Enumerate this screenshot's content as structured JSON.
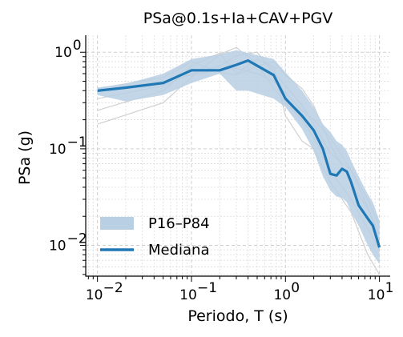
{
  "chart_data": {
    "type": "line",
    "title": "PSa@0.1s+Ia+CAV+PGV",
    "xlabel": "Periodo, T (s)",
    "ylabel": "PSa (g)",
    "xscale": "log",
    "yscale": "log",
    "xlim": [
      0.0075,
      13
    ],
    "ylim": [
      0.0048,
      1.5
    ],
    "grid": true,
    "legend_position": "lower-left",
    "x_ticks": [
      0.01,
      0.1,
      1,
      10
    ],
    "x_tick_labels": [
      "10",
      "10",
      "10",
      "10"
    ],
    "x_tick_exponents": [
      "−2",
      "−1",
      "0",
      "1"
    ],
    "y_ticks": [
      0.01,
      0.1,
      1
    ],
    "y_tick_labels": [
      "10",
      "10",
      "10"
    ],
    "y_tick_exponents": [
      "−2",
      "−1",
      "0"
    ],
    "legend": {
      "band_label": "P16–P84",
      "median_label": "Mediana"
    },
    "colors": {
      "median": "#1f77b4",
      "band": "#b9cfe4",
      "records": "#d0d0d0"
    },
    "median": {
      "x": [
        0.01,
        0.02,
        0.05,
        0.1,
        0.2,
        0.3,
        0.4,
        0.75,
        1.0,
        1.5,
        2.0,
        2.5,
        3.0,
        3.5,
        4.0,
        4.5,
        5.0,
        6.0,
        7.5,
        8.5,
        10.0
      ],
      "y": [
        0.4,
        0.43,
        0.48,
        0.65,
        0.65,
        0.74,
        0.82,
        0.58,
        0.33,
        0.22,
        0.155,
        0.1,
        0.055,
        0.053,
        0.062,
        0.058,
        0.045,
        0.026,
        0.019,
        0.016,
        0.0095
      ]
    },
    "band": {
      "x": [
        0.01,
        0.02,
        0.05,
        0.1,
        0.2,
        0.3,
        0.4,
        0.75,
        1.0,
        1.5,
        2.0,
        2.5,
        3.0,
        3.5,
        4.0,
        4.5,
        5.0,
        6.0,
        7.5,
        8.5,
        10.0
      ],
      "p84": [
        0.43,
        0.47,
        0.6,
        0.85,
        0.95,
        1.05,
        0.98,
        0.85,
        0.62,
        0.4,
        0.27,
        0.18,
        0.15,
        0.12,
        0.11,
        0.095,
        0.075,
        0.052,
        0.034,
        0.028,
        0.018
      ],
      "p16": [
        0.36,
        0.31,
        0.36,
        0.48,
        0.6,
        0.4,
        0.4,
        0.33,
        0.27,
        0.16,
        0.095,
        0.052,
        0.037,
        0.032,
        0.031,
        0.028,
        0.022,
        0.016,
        0.01,
        0.008,
        0.0064
      ]
    },
    "records": [
      {
        "x": [
          0.01,
          0.05,
          0.1,
          0.2,
          0.3,
          0.5,
          0.75,
          1.0,
          1.5,
          2.0,
          3.0,
          5.0,
          7.5,
          10.0
        ],
        "y": [
          0.42,
          0.55,
          0.8,
          0.62,
          0.58,
          0.72,
          0.8,
          0.58,
          0.42,
          0.28,
          0.11,
          0.045,
          0.024,
          0.013
        ]
      },
      {
        "x": [
          0.01,
          0.05,
          0.1,
          0.2,
          0.3,
          0.5,
          0.75,
          1.0,
          1.5,
          2.0,
          3.0,
          5.0,
          7.5,
          10.0
        ],
        "y": [
          0.18,
          0.3,
          0.55,
          0.95,
          1.12,
          0.75,
          0.42,
          0.3,
          0.2,
          0.13,
          0.06,
          0.03,
          0.015,
          0.009
        ]
      },
      {
        "x": [
          0.01,
          0.05,
          0.1,
          0.2,
          0.3,
          0.5,
          0.75,
          1.0,
          1.5,
          2.0,
          3.0,
          5.0,
          7.5,
          10.0
        ],
        "y": [
          0.25,
          0.4,
          0.72,
          0.98,
          0.6,
          0.85,
          0.7,
          0.22,
          0.12,
          0.1,
          0.045,
          0.022,
          0.008,
          0.005
        ]
      },
      {
        "x": [
          0.01,
          0.05,
          0.1,
          0.2,
          0.3,
          0.5,
          0.75,
          1.0,
          1.5,
          2.0,
          3.0,
          5.0,
          7.5,
          10.0
        ],
        "y": [
          0.33,
          0.45,
          0.6,
          0.72,
          0.92,
          1.0,
          0.62,
          0.45,
          0.28,
          0.18,
          0.09,
          0.06,
          0.03,
          0.016
        ]
      },
      {
        "x": [
          0.01,
          0.05,
          0.1,
          0.2,
          0.3,
          0.5,
          0.75,
          1.0,
          1.5,
          2.0,
          3.0,
          5.0,
          7.5,
          10.0
        ],
        "y": [
          0.4,
          0.5,
          0.58,
          0.66,
          0.68,
          0.6,
          0.5,
          0.38,
          0.25,
          0.2,
          0.13,
          0.06,
          0.025,
          0.011
        ]
      }
    ]
  }
}
